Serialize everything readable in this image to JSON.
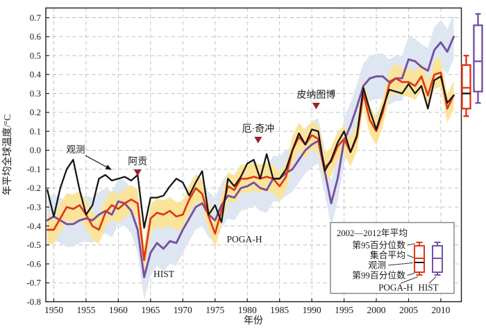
{
  "chart_data": {
    "type": "line",
    "title": "",
    "xlabel": "年份",
    "ylabel": "年平均全球温度/°C",
    "x_ticks": [
      "1950",
      "1955",
      "1960",
      "1965",
      "1970",
      "1975",
      "1980",
      "1985",
      "1990",
      "1995",
      "2000",
      "2005",
      "2010"
    ],
    "y_ticks": [
      "0.7",
      "0.6",
      "0.5",
      "0.4",
      "0.3",
      "0.2",
      "0.1",
      "0.0",
      "-0.1",
      "-0.2",
      "-0.3",
      "-0.4",
      "-0.5",
      "-0.6",
      "-0.7",
      "-0.8"
    ],
    "xlim": [
      1948.8,
      2013.2
    ],
    "ylim": [
      -0.8,
      0.75
    ],
    "grid": "dashed",
    "years": [
      1949,
      1950,
      1951,
      1952,
      1953,
      1954,
      1955,
      1956,
      1957,
      1958,
      1959,
      1960,
      1961,
      1962,
      1963,
      1964,
      1965,
      1966,
      1967,
      1968,
      1969,
      1970,
      1971,
      1972,
      1973,
      1974,
      1975,
      1976,
      1977,
      1978,
      1979,
      1980,
      1981,
      1982,
      1983,
      1984,
      1985,
      1986,
      1987,
      1988,
      1989,
      1990,
      1991,
      1992,
      1993,
      1994,
      1995,
      1996,
      1997,
      1998,
      1999,
      2000,
      2001,
      2002,
      2003,
      2004,
      2005,
      2006,
      2007,
      2008,
      2009,
      2010,
      2011,
      2012
    ],
    "series": [
      {
        "name": "观测",
        "color": "#151515",
        "stroke_width": 2.3,
        "values": [
          -0.21,
          -0.35,
          -0.2,
          -0.1,
          -0.05,
          -0.21,
          -0.34,
          -0.29,
          -0.15,
          -0.13,
          -0.16,
          -0.15,
          -0.14,
          -0.16,
          -0.13,
          -0.41,
          -0.25,
          -0.25,
          -0.24,
          -0.19,
          -0.15,
          -0.17,
          -0.24,
          -0.17,
          -0.11,
          -0.34,
          -0.29,
          -0.38,
          -0.15,
          -0.19,
          -0.14,
          -0.07,
          -0.05,
          -0.15,
          -0.02,
          -0.15,
          -0.15,
          -0.1,
          0.0,
          0.09,
          0.03,
          0.11,
          0.1,
          -0.11,
          -0.05,
          0.04,
          0.1,
          -0.01,
          0.08,
          0.33,
          0.21,
          0.11,
          0.22,
          0.32,
          0.31,
          0.3,
          0.35,
          0.3,
          0.34,
          0.22,
          0.37,
          0.39,
          0.25,
          0.29
        ]
      },
      {
        "name": "POGA-H",
        "color": "#e03616",
        "stroke_width": 2.7,
        "band_halfwidth": 0.075,
        "band_color": "#fae49c",
        "values": [
          -0.42,
          -0.42,
          -0.36,
          -0.3,
          -0.31,
          -0.29,
          -0.34,
          -0.4,
          -0.42,
          -0.33,
          -0.29,
          -0.31,
          -0.28,
          -0.26,
          -0.28,
          -0.58,
          -0.36,
          -0.33,
          -0.34,
          -0.32,
          -0.35,
          -0.34,
          -0.26,
          -0.2,
          -0.23,
          -0.35,
          -0.44,
          -0.32,
          -0.19,
          -0.21,
          -0.15,
          -0.15,
          -0.14,
          -0.15,
          -0.14,
          -0.15,
          -0.19,
          -0.14,
          0.0,
          0.07,
          0.03,
          0.08,
          0.06,
          -0.09,
          -0.06,
          0.02,
          0.06,
          -0.01,
          0.07,
          0.3,
          0.16,
          0.1,
          0.2,
          0.35,
          0.38,
          0.36,
          0.36,
          0.34,
          0.39,
          0.29,
          0.4,
          0.41,
          0.22,
          0.29
        ]
      },
      {
        "name": "HIST",
        "color": "#7650a2",
        "stroke_width": 2.9,
        "band_halfwidth": 0.12,
        "band_color": "#dde6f1",
        "values": [
          -0.37,
          -0.35,
          -0.37,
          -0.39,
          -0.39,
          -0.37,
          -0.36,
          -0.37,
          -0.34,
          -0.32,
          -0.34,
          -0.27,
          -0.28,
          -0.32,
          -0.42,
          -0.67,
          -0.54,
          -0.49,
          -0.52,
          -0.48,
          -0.49,
          -0.42,
          -0.36,
          -0.3,
          -0.28,
          -0.34,
          -0.37,
          -0.29,
          -0.24,
          -0.25,
          -0.2,
          -0.19,
          -0.17,
          -0.2,
          -0.21,
          -0.15,
          -0.15,
          -0.12,
          -0.1,
          -0.05,
          0.0,
          0.03,
          0.05,
          -0.11,
          -0.28,
          -0.15,
          0.05,
          0.13,
          0.23,
          0.34,
          0.38,
          0.39,
          0.39,
          0.36,
          0.38,
          0.38,
          0.48,
          0.47,
          0.44,
          0.42,
          0.53,
          0.57,
          0.52,
          0.6
        ]
      }
    ],
    "boxplots_2002_2012": [
      {
        "name": "POGA-H",
        "color": "#e03616",
        "whisker_low": 0.18,
        "box_low": 0.22,
        "observed": 0.3,
        "ensemble_mean": 0.33,
        "box_high": 0.45,
        "whisker_high": 0.5
      },
      {
        "name": "HIST",
        "color": "#7650a2",
        "whisker_low": 0.25,
        "box_low": 0.31,
        "ensemble_mean": 0.47,
        "box_high": 0.66,
        "whisker_high": 0.72
      }
    ],
    "annotations": {
      "obs_line_label": "观测",
      "poga_line_label": "POGA-H",
      "hist_line_label": "HIST",
      "volcano_color": "#9e1e2d",
      "volcanoes": [
        {
          "label": "阿贡",
          "year": 1963
        },
        {
          "label": "厄·奇冲",
          "year": 1982
        },
        {
          "label": "皮纳图博",
          "year": 1991
        }
      ]
    },
    "legend": {
      "title": "2002—2012年平均",
      "row_95": "第95百分位数",
      "row_mean": "集合平均",
      "row_obs": "观测",
      "row_99": "第99百分位数",
      "label_poga": "POGA-H",
      "label_hist": "HIST"
    }
  }
}
